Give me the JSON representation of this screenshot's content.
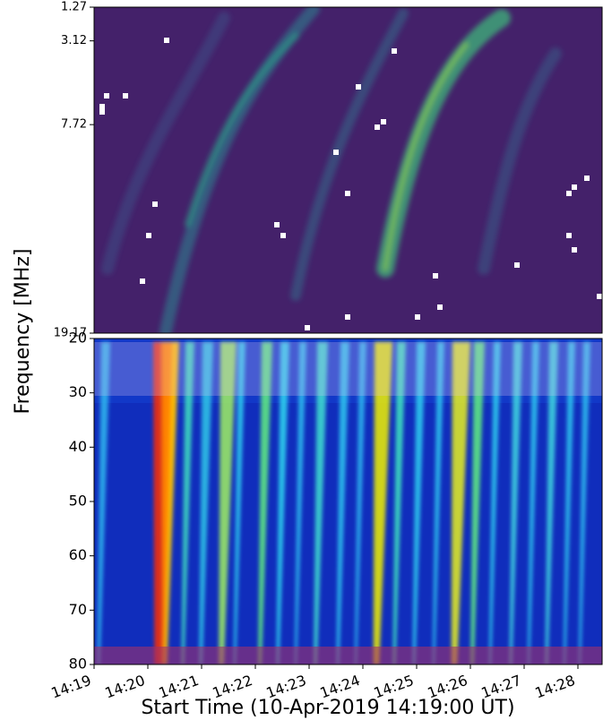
{
  "chart_data": [
    {
      "type": "heatmap",
      "ylim": [
        1.27,
        19.17
      ],
      "yticks": [
        1.27,
        3.12,
        7.72,
        19.17
      ]
    },
    {
      "type": "heatmap",
      "ylim": [
        20,
        80
      ],
      "yticks": [
        20,
        30,
        40,
        50,
        60,
        70,
        80
      ],
      "xlim": [
        "14:19:00",
        "14:28:27"
      ],
      "xticks": [
        "14:19",
        "14:20",
        "14:21",
        "14:22",
        "14:23",
        "14:24",
        "14:25",
        "14:26",
        "14:27",
        "14:28"
      ],
      "xlabel": "Start Time (10-Apr-2019 14:19:00 UT)",
      "ylabel": "Frequency  [MHz]"
    }
  ]
}
